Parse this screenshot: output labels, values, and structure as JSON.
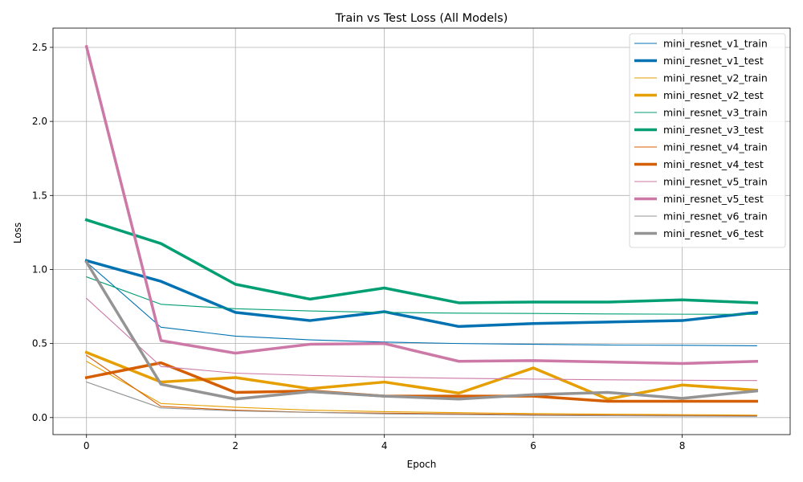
{
  "chart_data": {
    "type": "line",
    "title": "Train vs Test Loss (All Models)",
    "xlabel": "Epoch",
    "ylabel": "Loss",
    "x": [
      0,
      1,
      2,
      3,
      4,
      5,
      6,
      7,
      8,
      9
    ],
    "xlim": [
      -0.45,
      9.45
    ],
    "ylim": [
      -0.115,
      2.63
    ],
    "xticks": [
      0,
      2,
      4,
      6,
      8
    ],
    "yticks": [
      0.0,
      0.5,
      1.0,
      1.5,
      2.0,
      2.5
    ],
    "ytick_labels": [
      "0.0",
      "0.5",
      "1.0",
      "1.5",
      "2.0",
      "2.5"
    ],
    "grid": true,
    "legend_position": "top-right",
    "series": [
      {
        "name": "mini_resnet_v1_train",
        "color": "#0072b2",
        "role": "train",
        "values": [
          1.05,
          0.61,
          0.55,
          0.525,
          0.51,
          0.5,
          0.495,
          0.49,
          0.488,
          0.485
        ]
      },
      {
        "name": "mini_resnet_v1_test",
        "color": "#0072b2",
        "role": "test",
        "values": [
          1.06,
          0.92,
          0.71,
          0.655,
          0.715,
          0.615,
          0.635,
          0.645,
          0.655,
          0.71
        ]
      },
      {
        "name": "mini_resnet_v2_train",
        "color": "#e69f00",
        "role": "train",
        "values": [
          0.38,
          0.095,
          0.07,
          0.05,
          0.04,
          0.033,
          0.027,
          0.023,
          0.02,
          0.016
        ]
      },
      {
        "name": "mini_resnet_v2_test",
        "color": "#e69f00",
        "role": "test",
        "values": [
          0.44,
          0.24,
          0.27,
          0.195,
          0.24,
          0.165,
          0.335,
          0.125,
          0.22,
          0.185
        ]
      },
      {
        "name": "mini_resnet_v3_train",
        "color": "#009e73",
        "role": "train",
        "values": [
          0.95,
          0.765,
          0.735,
          0.72,
          0.71,
          0.705,
          0.703,
          0.7,
          0.698,
          0.697
        ]
      },
      {
        "name": "mini_resnet_v3_test",
        "color": "#009e73",
        "role": "test",
        "values": [
          1.335,
          1.175,
          0.9,
          0.8,
          0.875,
          0.775,
          0.78,
          0.78,
          0.795,
          0.775
        ]
      },
      {
        "name": "mini_resnet_v4_train",
        "color": "#d55e00",
        "role": "train",
        "values": [
          0.42,
          0.075,
          0.05,
          0.035,
          0.03,
          0.025,
          0.02,
          0.016,
          0.014,
          0.012
        ]
      },
      {
        "name": "mini_resnet_v4_test",
        "color": "#d55e00",
        "role": "test",
        "values": [
          0.27,
          0.37,
          0.17,
          0.18,
          0.145,
          0.145,
          0.145,
          0.11,
          0.11,
          0.11
        ]
      },
      {
        "name": "mini_resnet_v5_train",
        "color": "#cc79a7",
        "role": "train",
        "values": [
          0.805,
          0.345,
          0.3,
          0.285,
          0.273,
          0.265,
          0.26,
          0.255,
          0.252,
          0.25
        ]
      },
      {
        "name": "mini_resnet_v5_test",
        "color": "#cc79a7",
        "role": "test",
        "values": [
          2.505,
          0.52,
          0.435,
          0.495,
          0.5,
          0.38,
          0.385,
          0.375,
          0.365,
          0.38
        ]
      },
      {
        "name": "mini_resnet_v6_train",
        "color": "#949494",
        "role": "train",
        "values": [
          0.24,
          0.065,
          0.045,
          0.035,
          0.025,
          0.02,
          0.015,
          0.012,
          0.01,
          0.008
        ]
      },
      {
        "name": "mini_resnet_v6_test",
        "color": "#949494",
        "role": "test",
        "values": [
          1.05,
          0.225,
          0.125,
          0.175,
          0.145,
          0.125,
          0.155,
          0.17,
          0.13,
          0.18
        ]
      }
    ]
  }
}
